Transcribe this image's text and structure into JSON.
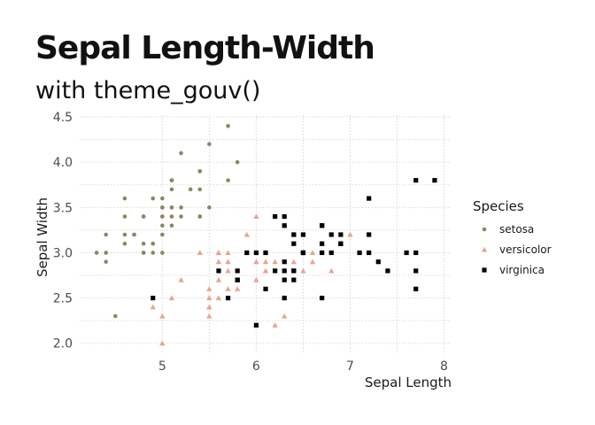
{
  "chart_data": {
    "type": "scatter",
    "title": "Sepal Length-Width",
    "subtitle": "with theme_gouv()",
    "xlabel": "Sepal Length",
    "ylabel": "Sepal Width",
    "xlim": [
      4.3,
      7.9
    ],
    "ylim": [
      2.0,
      4.4
    ],
    "x_ticks": [
      5,
      6,
      7,
      8
    ],
    "y_ticks": [
      2.0,
      2.5,
      3.0,
      3.5,
      4.0,
      4.5
    ],
    "x_tick_labels": [
      "5",
      "6",
      "7",
      "8"
    ],
    "y_tick_labels": [
      "2.0",
      "2.5",
      "3.0",
      "3.5",
      "4.0",
      "4.5"
    ],
    "grid": true,
    "legend": {
      "title": "Species",
      "position": "right"
    },
    "series": [
      {
        "name": "setosa",
        "color": "#8c8763",
        "marker": "circle",
        "points": [
          [
            5.1,
            3.5
          ],
          [
            4.9,
            3.0
          ],
          [
            4.7,
            3.2
          ],
          [
            4.6,
            3.1
          ],
          [
            5.0,
            3.6
          ],
          [
            5.4,
            3.9
          ],
          [
            4.6,
            3.4
          ],
          [
            5.0,
            3.4
          ],
          [
            4.4,
            2.9
          ],
          [
            4.9,
            3.1
          ],
          [
            5.4,
            3.7
          ],
          [
            4.8,
            3.4
          ],
          [
            4.8,
            3.0
          ],
          [
            4.3,
            3.0
          ],
          [
            5.8,
            4.0
          ],
          [
            5.7,
            4.4
          ],
          [
            5.4,
            3.9
          ],
          [
            5.1,
            3.5
          ],
          [
            5.7,
            3.8
          ],
          [
            5.1,
            3.8
          ],
          [
            5.4,
            3.4
          ],
          [
            5.1,
            3.7
          ],
          [
            4.6,
            3.6
          ],
          [
            5.1,
            3.3
          ],
          [
            4.8,
            3.4
          ],
          [
            5.0,
            3.0
          ],
          [
            5.0,
            3.4
          ],
          [
            5.2,
            3.5
          ],
          [
            5.2,
            3.4
          ],
          [
            4.7,
            3.2
          ],
          [
            4.8,
            3.1
          ],
          [
            5.4,
            3.4
          ],
          [
            5.2,
            4.1
          ],
          [
            5.5,
            4.2
          ],
          [
            4.9,
            3.1
          ],
          [
            5.0,
            3.2
          ],
          [
            5.5,
            3.5
          ],
          [
            4.9,
            3.6
          ],
          [
            4.4,
            3.0
          ],
          [
            5.1,
            3.4
          ],
          [
            5.0,
            3.5
          ],
          [
            4.5,
            2.3
          ],
          [
            4.4,
            3.2
          ],
          [
            5.0,
            3.5
          ],
          [
            5.1,
            3.8
          ],
          [
            4.8,
            3.0
          ],
          [
            5.1,
            3.8
          ],
          [
            4.6,
            3.2
          ],
          [
            5.3,
            3.7
          ],
          [
            5.0,
            3.3
          ]
        ]
      },
      {
        "name": "versicolor",
        "color": "#e8a593",
        "marker": "triangle",
        "points": [
          [
            7.0,
            3.2
          ],
          [
            6.4,
            3.2
          ],
          [
            6.9,
            3.1
          ],
          [
            5.5,
            2.3
          ],
          [
            6.5,
            2.8
          ],
          [
            5.7,
            2.8
          ],
          [
            6.3,
            3.3
          ],
          [
            4.9,
            2.4
          ],
          [
            6.6,
            2.9
          ],
          [
            5.2,
            2.7
          ],
          [
            5.0,
            2.0
          ],
          [
            5.9,
            3.0
          ],
          [
            6.0,
            2.2
          ],
          [
            6.1,
            2.9
          ],
          [
            5.6,
            2.9
          ],
          [
            6.7,
            3.1
          ],
          [
            5.6,
            3.0
          ],
          [
            5.8,
            2.7
          ],
          [
            6.2,
            2.2
          ],
          [
            5.6,
            2.5
          ],
          [
            5.9,
            3.2
          ],
          [
            6.1,
            2.8
          ],
          [
            6.3,
            2.5
          ],
          [
            6.1,
            2.8
          ],
          [
            6.4,
            2.9
          ],
          [
            6.6,
            3.0
          ],
          [
            6.8,
            2.8
          ],
          [
            6.7,
            3.0
          ],
          [
            6.0,
            2.9
          ],
          [
            5.7,
            2.6
          ],
          [
            5.5,
            2.4
          ],
          [
            5.5,
            2.4
          ],
          [
            5.8,
            2.7
          ],
          [
            6.0,
            2.7
          ],
          [
            5.4,
            3.0
          ],
          [
            6.0,
            3.4
          ],
          [
            6.7,
            3.1
          ],
          [
            6.3,
            2.3
          ],
          [
            5.6,
            3.0
          ],
          [
            5.5,
            2.5
          ],
          [
            5.5,
            2.6
          ],
          [
            6.1,
            3.0
          ],
          [
            5.8,
            2.6
          ],
          [
            5.0,
            2.3
          ],
          [
            5.6,
            2.7
          ],
          [
            5.7,
            3.0
          ],
          [
            5.7,
            2.9
          ],
          [
            6.2,
            2.9
          ],
          [
            5.1,
            2.5
          ],
          [
            5.7,
            2.8
          ]
        ]
      },
      {
        "name": "virginica",
        "color": "#000000",
        "marker": "square",
        "points": [
          [
            6.3,
            3.3
          ],
          [
            5.8,
            2.7
          ],
          [
            7.1,
            3.0
          ],
          [
            6.3,
            2.9
          ],
          [
            6.5,
            3.0
          ],
          [
            7.6,
            3.0
          ],
          [
            4.9,
            2.5
          ],
          [
            7.3,
            2.9
          ],
          [
            6.7,
            2.5
          ],
          [
            7.2,
            3.6
          ],
          [
            6.5,
            3.2
          ],
          [
            6.4,
            2.7
          ],
          [
            6.8,
            3.0
          ],
          [
            5.7,
            2.5
          ],
          [
            5.8,
            2.8
          ],
          [
            6.4,
            3.2
          ],
          [
            6.5,
            3.0
          ],
          [
            7.7,
            3.8
          ],
          [
            7.7,
            2.6
          ],
          [
            6.0,
            2.2
          ],
          [
            6.9,
            3.2
          ],
          [
            5.6,
            2.8
          ],
          [
            7.7,
            2.8
          ],
          [
            6.3,
            2.7
          ],
          [
            6.7,
            3.3
          ],
          [
            7.2,
            3.2
          ],
          [
            6.2,
            2.8
          ],
          [
            6.1,
            3.0
          ],
          [
            6.4,
            2.8
          ],
          [
            7.2,
            3.0
          ],
          [
            7.4,
            2.8
          ],
          [
            7.9,
            3.8
          ],
          [
            6.4,
            2.8
          ],
          [
            6.3,
            2.8
          ],
          [
            6.1,
            2.6
          ],
          [
            7.7,
            3.0
          ],
          [
            6.3,
            3.4
          ],
          [
            6.4,
            3.1
          ],
          [
            6.0,
            3.0
          ],
          [
            6.9,
            3.1
          ],
          [
            6.7,
            3.1
          ],
          [
            6.9,
            3.1
          ],
          [
            5.8,
            2.7
          ],
          [
            6.8,
            3.2
          ],
          [
            6.7,
            3.3
          ],
          [
            6.7,
            3.0
          ],
          [
            6.3,
            2.5
          ],
          [
            6.5,
            3.0
          ],
          [
            6.2,
            3.4
          ],
          [
            5.9,
            3.0
          ]
        ]
      }
    ]
  }
}
